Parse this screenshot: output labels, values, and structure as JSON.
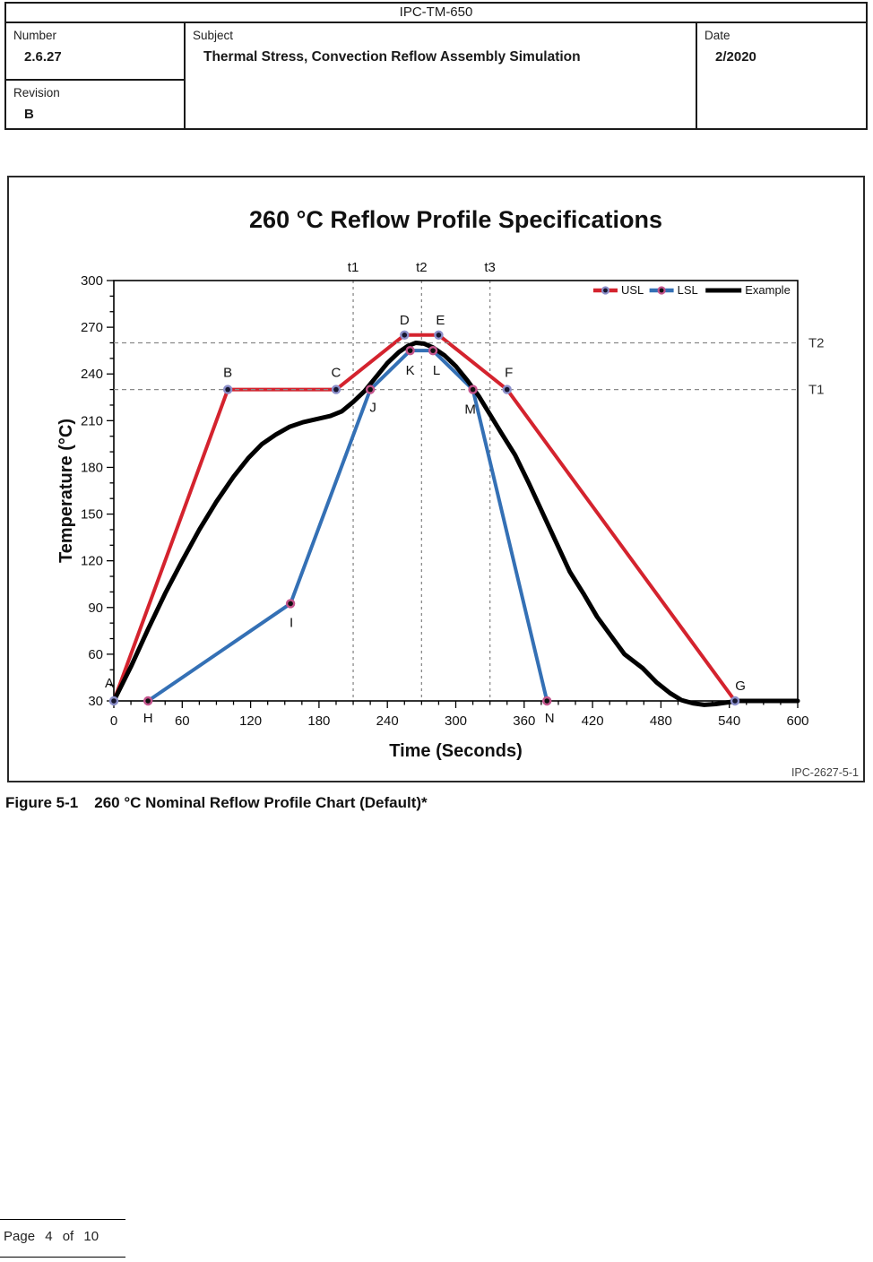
{
  "header": {
    "doc_title": "IPC-TM-650",
    "number_label": "Number",
    "number_value": "2.6.27",
    "revision_label": "Revision",
    "revision_value": "B",
    "subject_label": "Subject",
    "subject_value": "Thermal Stress, Convection Reflow Assembly Simulation",
    "date_label": "Date",
    "date_value": "2/2020"
  },
  "figure": {
    "caption_label": "Figure 5-1",
    "caption_text": "260 °C Nominal Reflow Profile Chart (Default)*",
    "watermark": "IPC-2627-5-1"
  },
  "footer": {
    "page_text": "Page 4 of 10"
  },
  "chart_data": {
    "type": "line",
    "title": "260 °C Reflow Profile Specifications",
    "xlabel": "Time (Seconds)",
    "ylabel": "Temperature (°C)",
    "xlim": [
      0,
      600
    ],
    "ylim": [
      30,
      300
    ],
    "x_major_tick": 60,
    "x_minor_tick": 15,
    "y_major_tick": 30,
    "y_minor_tick": 10,
    "grid": false,
    "legend_position": "top-right-inside",
    "series": [
      {
        "name": "USL",
        "color": "#d4232e",
        "line_width": 4,
        "markers": true,
        "marker_ring_color": "#8a8ec9",
        "marker_core_color": "#16162e",
        "points": [
          [
            0,
            30
          ],
          [
            100,
            230
          ],
          [
            195,
            230
          ],
          [
            255,
            265
          ],
          [
            285,
            265
          ],
          [
            345,
            230
          ],
          [
            545,
            30
          ]
        ],
        "point_labels": [
          "A",
          "B",
          "C",
          "D",
          "E",
          "F",
          "G"
        ]
      },
      {
        "name": "LSL",
        "color": "#3470b5",
        "line_width": 4,
        "markers": true,
        "marker_ring_color": "#c4548c",
        "marker_core_color": "#111111",
        "points": [
          [
            30,
            30
          ],
          [
            155,
            92.5
          ],
          [
            225,
            230
          ],
          [
            260,
            255
          ],
          [
            280,
            255
          ],
          [
            315,
            230
          ],
          [
            380,
            30
          ]
        ],
        "point_labels": [
          "H",
          "I",
          "J",
          "K",
          "L",
          "M",
          "N"
        ]
      },
      {
        "name": "Example",
        "color": "#000000",
        "line_width": 5,
        "markers": false,
        "points": [
          [
            0,
            30
          ],
          [
            15,
            52
          ],
          [
            30,
            76
          ],
          [
            45,
            99
          ],
          [
            60,
            120
          ],
          [
            75,
            140
          ],
          [
            90,
            158
          ],
          [
            105,
            174
          ],
          [
            118,
            186
          ],
          [
            130,
            195
          ],
          [
            142,
            201
          ],
          [
            154,
            206
          ],
          [
            166,
            209
          ],
          [
            178,
            211
          ],
          [
            190,
            213
          ],
          [
            200,
            216
          ],
          [
            210,
            222
          ],
          [
            220,
            229
          ],
          [
            230,
            238
          ],
          [
            240,
            247
          ],
          [
            250,
            254
          ],
          [
            258,
            258
          ],
          [
            265,
            260
          ],
          [
            272,
            259.5
          ],
          [
            280,
            257
          ],
          [
            290,
            252
          ],
          [
            300,
            245
          ],
          [
            310,
            236
          ],
          [
            320,
            226
          ],
          [
            330,
            214
          ],
          [
            340,
            202
          ],
          [
            352,
            188
          ],
          [
            364,
            170
          ],
          [
            376,
            151
          ],
          [
            388,
            132
          ],
          [
            400,
            113
          ],
          [
            412,
            99
          ],
          [
            424,
            84
          ],
          [
            436,
            72
          ],
          [
            448,
            60
          ],
          [
            464,
            51
          ],
          [
            476,
            42
          ],
          [
            488,
            35
          ],
          [
            498,
            30.5
          ],
          [
            508,
            28.5
          ],
          [
            518,
            27.5
          ],
          [
            528,
            28
          ],
          [
            538,
            29
          ],
          [
            548,
            30
          ],
          [
            600,
            30
          ]
        ],
        "point_labels": []
      }
    ],
    "reference_lines": {
      "vertical": [
        {
          "x": 210,
          "label": "t1"
        },
        {
          "x": 270,
          "label": "t2"
        },
        {
          "x": 330,
          "label": "t3"
        }
      ],
      "horizontal": [
        {
          "y": 260,
          "label": "T2"
        },
        {
          "y": 230,
          "label": "T1"
        }
      ]
    },
    "ref_line_color": "#8a8a8a",
    "watermark": "IPC-2627-5-1"
  }
}
